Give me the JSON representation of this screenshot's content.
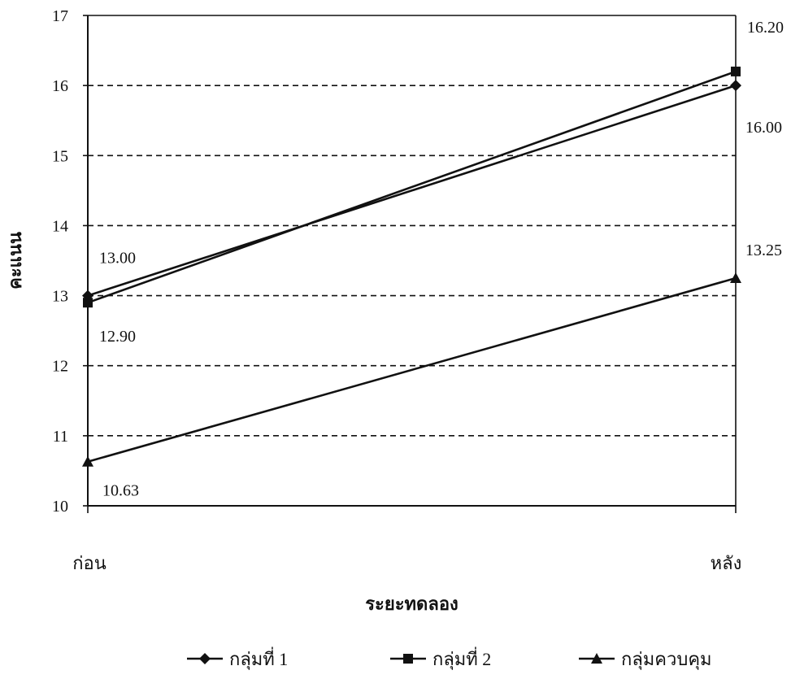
{
  "chart_data": {
    "type": "line",
    "title": "",
    "xlabel": "ระยะทดลอง",
    "ylabel": "คะแนน",
    "categories": [
      "ก่อน",
      "หลัง"
    ],
    "ylim": [
      10,
      17
    ],
    "yticks": [
      "10",
      "11",
      "12",
      "13",
      "14",
      "15",
      "16",
      "17"
    ],
    "grid": "horizontal-dashed",
    "legend_position": "bottom",
    "series": [
      {
        "name": "กลุ่มที่ 1",
        "marker": "diamond",
        "values": [
          13.0,
          16.0
        ],
        "labels": [
          "13.00",
          "16.00"
        ]
      },
      {
        "name": "กลุ่มที่ 2",
        "marker": "square",
        "values": [
          12.9,
          16.2
        ],
        "labels": [
          "12.90",
          "16.20"
        ]
      },
      {
        "name": "กลุ่มควบคุม",
        "marker": "triangle",
        "values": [
          10.63,
          13.25
        ],
        "labels": [
          "10.63",
          "13.25"
        ]
      }
    ],
    "colors": {
      "line": "#111111",
      "grid": "#111111",
      "axis": "#111111"
    }
  }
}
